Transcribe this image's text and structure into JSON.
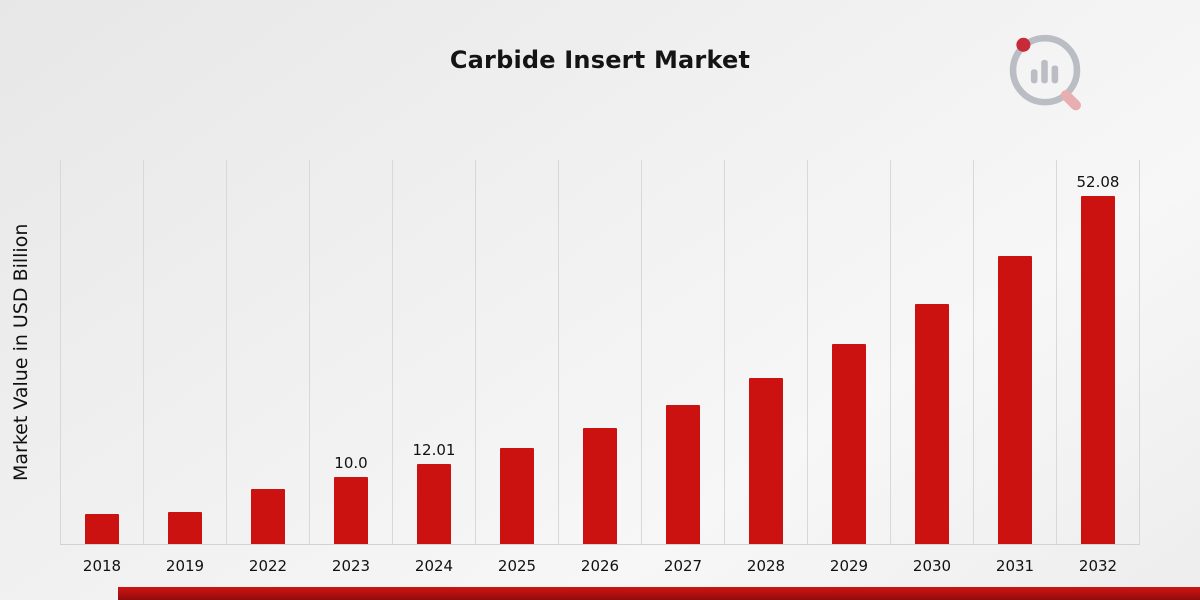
{
  "page": {
    "title": "Carbide Insert Market"
  },
  "y_axis": {
    "label": "Market Value in USD Billion"
  },
  "logo": {
    "name": "market-research-future-logo"
  },
  "colors": {
    "bar": "#cc1111",
    "gridline": "#d8d8d8",
    "ribbon": "#b00f0f",
    "text": "#111111",
    "background_start": "#e7e7e8",
    "background_end": "#f7f7f7"
  },
  "chart_data": {
    "type": "bar",
    "title": "Carbide Insert Market",
    "xlabel": "",
    "ylabel": "Market Value in USD Billion",
    "categories": [
      "2018",
      "2019",
      "2022",
      "2023",
      "2024",
      "2025",
      "2026",
      "2027",
      "2028",
      "2029",
      "2030",
      "2031",
      "2032"
    ],
    "values": [
      4.5,
      4.8,
      8.3,
      10.0,
      12.01,
      14.4,
      17.3,
      20.8,
      24.9,
      29.9,
      35.9,
      43.1,
      52.08
    ],
    "data_labels": {
      "2023": "10.0",
      "2024": "12.01",
      "2032": "52.08"
    },
    "ylim": [
      0,
      57.5
    ],
    "grid": "vertical",
    "legend": "none",
    "bar_color": "#cc1111"
  }
}
